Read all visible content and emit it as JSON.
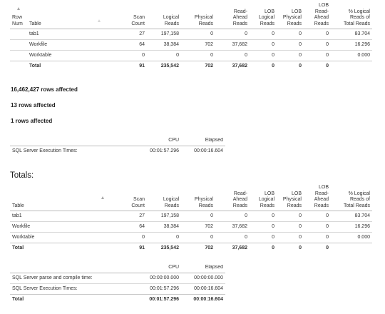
{
  "stats_table": {
    "columns": {
      "row_num": [
        "Row",
        "Num"
      ],
      "table": "Table",
      "scan_count": [
        "Scan",
        "Count"
      ],
      "logical_reads": [
        "Logical",
        "Reads"
      ],
      "physical_reads": [
        "Physical",
        "Reads"
      ],
      "read_ahead": [
        "Read-",
        "Ahead",
        "Reads"
      ],
      "lob_logical": [
        "LOB",
        "Logical",
        "Reads"
      ],
      "lob_physical": [
        "LOB",
        "Physical",
        "Reads"
      ],
      "lob_read_ahead": [
        "LOB",
        "Read-",
        "Ahead",
        "Reads"
      ],
      "pct_logical": [
        "% Logical",
        "Reads of",
        "Total Reads"
      ]
    },
    "rows": [
      [
        "tab1",
        "27",
        "197,158",
        "0",
        "0",
        "0",
        "0",
        "0",
        "83.704"
      ],
      [
        "Workfile",
        "64",
        "38,384",
        "702",
        "37,682",
        "0",
        "0",
        "0",
        "16.296"
      ],
      [
        "Worktable",
        "0",
        "0",
        "0",
        "0",
        "0",
        "0",
        "0",
        "0.000"
      ]
    ],
    "total": [
      "Total",
      "91",
      "235,542",
      "702",
      "37,682",
      "0",
      "0",
      "0",
      ""
    ]
  },
  "messages": [
    "16,462,427 rows affected",
    "13 rows affected",
    "1 rows affected"
  ],
  "exec_time": {
    "col_cpu": "CPU",
    "col_elapsed": "Elapsed",
    "row": [
      "SQL Server Execution Times:",
      "00:01:57.296",
      "00:00:16.604"
    ]
  },
  "totals_title": "Totals:",
  "totals_table": {
    "columns": {
      "table": "Table",
      "scan_count": [
        "Scan",
        "Count"
      ],
      "logical_reads": [
        "Logical",
        "Reads"
      ],
      "physical_reads": [
        "Physical",
        "Reads"
      ],
      "read_ahead": [
        "Read-",
        "Ahead",
        "Reads"
      ],
      "lob_logical": [
        "LOB",
        "Logical",
        "Reads"
      ],
      "lob_physical": [
        "LOB",
        "Physical",
        "Reads"
      ],
      "lob_read_ahead": [
        "LOB",
        "Read-",
        "Ahead",
        "Reads"
      ],
      "pct_logical": [
        "% Logical",
        "Reads of",
        "Total Reads"
      ]
    },
    "rows": [
      [
        "tab1",
        "27",
        "197,158",
        "0",
        "0",
        "0",
        "0",
        "0",
        "83.704"
      ],
      [
        "Workfile",
        "64",
        "38,384",
        "702",
        "37,682",
        "0",
        "0",
        "0",
        "16.296"
      ],
      [
        "Worktable",
        "0",
        "0",
        "0",
        "0",
        "0",
        "0",
        "0",
        "0.000"
      ]
    ],
    "total": [
      "Total",
      "91",
      "235,542",
      "702",
      "37,682",
      "0",
      "0",
      "0",
      ""
    ]
  },
  "totals_time": {
    "col_cpu": "CPU",
    "col_elapsed": "Elapsed",
    "rows": [
      [
        "SQL Server parse and compile time:",
        "00:00:00.000",
        "00:00:00.000"
      ],
      [
        "SQL Server Execution Times:",
        "00:01:57.296",
        "00:00:16.604"
      ]
    ],
    "total": [
      "Total",
      "00:01:57.296",
      "00:00:16.604"
    ]
  }
}
